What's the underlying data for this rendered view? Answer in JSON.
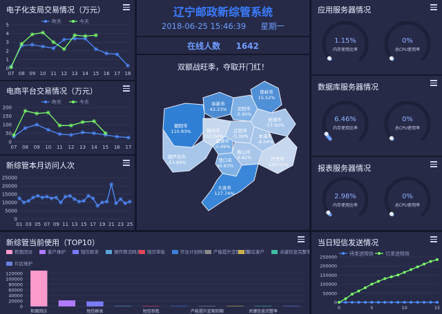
{
  "header": {
    "title": "辽宁邮政新综管系统",
    "datetime": "2018-06-25 15:46:39",
    "weekday": "星期一",
    "online_label": "在线人数",
    "online_count": "1642"
  },
  "colors": {
    "bg": "#14172a",
    "panel": "#262a47",
    "blue_line": "#4f8cff",
    "green_line": "#7dff6a",
    "pink": "#ff9acd",
    "purple": "#8a7bff",
    "title_blue": "#3b7cff"
  },
  "panels": {
    "postal": {
      "title": "电子化支局交易情况（万元）",
      "chart_data": {
        "type": "line",
        "categories": [
          "07",
          "08",
          "09",
          "10",
          "11",
          "12",
          "13",
          "14",
          "15",
          "16",
          "17",
          "18"
        ],
        "ylim": [
          0,
          5
        ],
        "yticks": [
          "0",
          "1",
          "2",
          "3",
          "4",
          "5"
        ],
        "series": [
          {
            "name": "昨天",
            "color": "#4f8cff",
            "values": [
              0.2,
              2.6,
              2.7,
              2.5,
              2.3,
              3.3,
              3.4,
              3.4,
              2.2,
              1.7,
              1.6,
              0.3
            ]
          },
          {
            "name": "今天",
            "color": "#7dff6a",
            "values": [
              0.1,
              2.8,
              3.9,
              4.1,
              3.0,
              2.2,
              3.8,
              3.7,
              3.8,
              null,
              null,
              null
            ]
          }
        ]
      }
    },
    "ecommerce": {
      "title": "电商平台交易情况（万元）",
      "chart_data": {
        "type": "line",
        "categories": [
          "07",
          "08",
          "09",
          "10",
          "11",
          "12",
          "13",
          "14",
          "15",
          "16",
          "17"
        ],
        "ylim": [
          0,
          200
        ],
        "yticks": [
          "0",
          "50",
          "100",
          "150",
          "200"
        ],
        "series": [
          {
            "name": "昨天",
            "color": "#4f8cff",
            "values": [
              30,
              80,
              100,
              70,
              45,
              40,
              55,
              50,
              40,
              30,
              25
            ]
          },
          {
            "name": "今天",
            "color": "#7dff6a",
            "values": [
              40,
              180,
              165,
              170,
              95,
              95,
              115,
              120,
              50,
              null,
              null
            ]
          }
        ]
      }
    },
    "monthly": {
      "title": "新综管本月访问人次",
      "chart_data": {
        "type": "line",
        "categories": [
          "01",
          "02",
          "03",
          "04",
          "05",
          "06",
          "07",
          "08",
          "09",
          "10",
          "11",
          "12",
          "13",
          "14",
          "15",
          "16",
          "17",
          "18",
          "19",
          "20",
          "21",
          "22",
          "23",
          "24",
          "25"
        ],
        "xticks": [
          "01",
          "03",
          "05",
          "07",
          "09",
          "11",
          "13",
          "15",
          "17",
          "19",
          "21",
          "23",
          "25"
        ],
        "ylim": [
          0,
          25000
        ],
        "yticks": [
          "0",
          "5000",
          "10000",
          "15000",
          "20000",
          "25000"
        ],
        "series": [
          {
            "name": "访问人次",
            "color": "#4f8cff",
            "values": [
              12500,
              10000,
              11000,
              13000,
              14000,
              13000,
              13500,
              12500,
              13000,
              10000,
              13500,
              14000,
              12000,
              10500,
              11000,
              14000,
              12500,
              8000,
              10000,
              10500,
              21000,
              9500,
              12000,
              9500,
              10500
            ]
          }
        ]
      }
    },
    "top10": {
      "title": "新综管当前使用（TOP10）",
      "legend": [
        {
          "label": "柜面回访",
          "color": "#ff9acd"
        },
        {
          "label": "客户维护",
          "color": "#b07bff"
        },
        {
          "label": "短信群发",
          "color": "#7b7bff"
        },
        {
          "label": "操作情况网点",
          "color": "#5aa3d8"
        },
        {
          "label": "短信审批",
          "color": "#e0475a"
        },
        {
          "label": "作业计划网点",
          "color": "#3f7fd8"
        },
        {
          "label": "产能提升定期到期",
          "color": "#8a8a8a"
        },
        {
          "label": "潜在客户",
          "color": "#c9b14a"
        },
        {
          "label": "关键信息完整率",
          "color": "#3fbfa0"
        },
        {
          "label": "片区维护",
          "color": "#6b7fe0"
        }
      ],
      "chart_data": {
        "type": "bar",
        "categories": [
          "柜面回访",
          "客户维护",
          "短信群发",
          "操作情况网点",
          "短信审批",
          "作业计划网点",
          "产能提升定期到期",
          "潜在客户",
          "关键信息完整率",
          "片区维护"
        ],
        "values": [
          130000,
          22000,
          18000,
          1200,
          900,
          800,
          600,
          500,
          400,
          300
        ],
        "ylim": [
          0,
          140000
        ],
        "yticks": [
          "0",
          "20000",
          "40000",
          "60000",
          "80000",
          "100000",
          "120000"
        ],
        "xticks": [
          "柜面回访",
          "短信群发",
          "短信审批",
          "产能提升定期到期",
          "关键信息完整率"
        ]
      }
    },
    "map": {
      "slogan": "双额战旺季，夺取开门红！",
      "cities": [
        {
          "name": "铁岭市",
          "value": "15.52%"
        },
        {
          "name": "阜新市",
          "value": "43.33%"
        },
        {
          "name": "沈阳市",
          "value": "-5.90%"
        },
        {
          "name": "抚顺市",
          "value": "-57.92%"
        },
        {
          "name": "朝阳市",
          "value": "110.83%"
        },
        {
          "name": "锦州市",
          "value": "152.00%"
        },
        {
          "name": "盘锦市",
          "value": "-5.69%"
        },
        {
          "name": "辽阳市",
          "value": "-5.39%"
        },
        {
          "name": "本溪市",
          "value": "-8.54%"
        },
        {
          "name": "葫芦岛市",
          "value": "-53.89%"
        },
        {
          "name": "营口市",
          "value": "40.83%"
        },
        {
          "name": "鞍山市",
          "value": "-6.82%"
        },
        {
          "name": "丹东市",
          "value": "-120.01%"
        },
        {
          "name": "大连市",
          "value": "127.74%"
        }
      ]
    },
    "app_server": {
      "title": "应用服务器情况",
      "gauges": [
        {
          "value": "1.15%",
          "label": "内存使用比率",
          "fraction": 0.0115
        },
        {
          "value": "0%",
          "label": "总CPU使用率",
          "fraction": 0
        }
      ]
    },
    "db_server": {
      "title": "数据库服务器情况",
      "gauges": [
        {
          "value": "6.46%",
          "label": "内存使用比率",
          "fraction": 0.0646
        },
        {
          "value": "0%",
          "label": "总CPU使用率",
          "fraction": 0
        }
      ]
    },
    "report_server": {
      "title": "报表服务器情况",
      "gauges": [
        {
          "value": "2.98%",
          "label": "内存使用比率",
          "fraction": 0.0298
        },
        {
          "value": "0%",
          "label": "总CPU使用率",
          "fraction": 0
        }
      ]
    },
    "sms": {
      "title": "当日短信发送情况",
      "chart_data": {
        "type": "line",
        "categories": [
          "0",
          "1",
          "2",
          "3",
          "4",
          "5",
          "6",
          "7",
          "8",
          "9",
          "10",
          "11",
          "12",
          "13",
          "14",
          "15"
        ],
        "xticks": [
          "0",
          "5",
          "10",
          "15"
        ],
        "ylim": [
          0,
          250000
        ],
        "yticks": [
          "0",
          "50000",
          "100000",
          "150000",
          "200000",
          "250000"
        ],
        "series": [
          {
            "name": "待发送短信",
            "color": "#4f8cff",
            "values": [
              0,
              0,
              0,
              0,
              0,
              0,
              0,
              0,
              0,
              0,
              0,
              0,
              0,
              0,
              0,
              0
            ]
          },
          {
            "name": "已发送短信",
            "color": "#7dff6a",
            "values": [
              0,
              20000,
              45000,
              62000,
              80000,
              100000,
              115000,
              130000,
              140000,
              150000,
              165000,
              180000,
              195000,
              210000,
              225000,
              235000
            ]
          }
        ]
      }
    },
    "legend_labels": {
      "yesterday": "昨天",
      "today": "今天"
    }
  }
}
